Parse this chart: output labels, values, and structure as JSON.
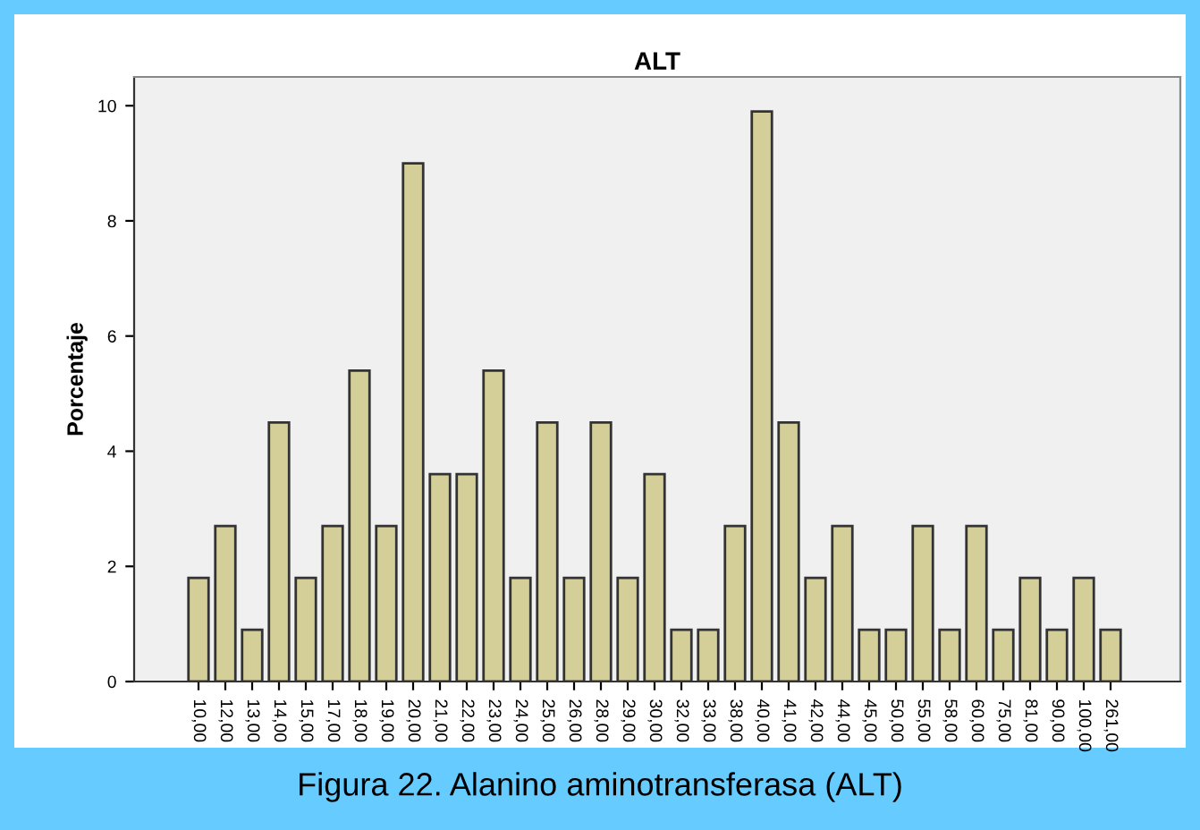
{
  "chart_data": {
    "type": "bar",
    "title": "ALT",
    "ylabel": "Porcentaje",
    "categories": [
      "10,00",
      "12,00",
      "13,00",
      "14,00",
      "15,00",
      "17,00",
      "18,00",
      "19,00",
      "20,00",
      "21,00",
      "22,00",
      "23,00",
      "24,00",
      "25,00",
      "26,00",
      "28,00",
      "29,00",
      "30,00",
      "32,00",
      "33,00",
      "38,00",
      "40,00",
      "41,00",
      "42,00",
      "44,00",
      "45,00",
      "50,00",
      "55,00",
      "58,00",
      "60,00",
      "75,00",
      "81,00",
      "90,00",
      "100,00",
      "261,00"
    ],
    "values": [
      1.8,
      2.7,
      0.9,
      4.5,
      1.8,
      2.7,
      5.4,
      2.7,
      9.0,
      3.6,
      3.6,
      5.4,
      1.8,
      4.5,
      1.8,
      4.5,
      1.8,
      3.6,
      0.9,
      0.9,
      2.7,
      9.9,
      4.5,
      1.8,
      2.7,
      0.9,
      0.9,
      2.7,
      0.9,
      2.7,
      0.9,
      1.8,
      0.9,
      1.8,
      0.9
    ],
    "color": "#d4cf98",
    "ylim": [
      0,
      10.5
    ],
    "yticks": [
      0,
      2,
      4,
      6,
      8,
      10
    ],
    "grid": false,
    "legend": false,
    "annotations": [
      "Figura 22. Alanino aminotransferasa (ALT)"
    ]
  }
}
